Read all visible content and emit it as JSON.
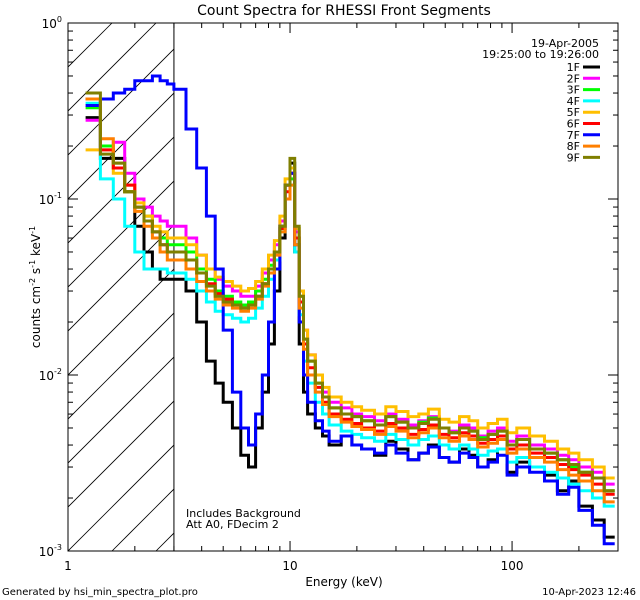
{
  "chart_data": {
    "type": "line",
    "title": "Count Spectra for RHESSI Front Segments",
    "xlabel": "Energy (keV)",
    "ylabel_parts": {
      "prefix": "counts cm",
      "exp1": "-2",
      "mid1": " s",
      "exp2": "-1",
      "mid2": " keV",
      "exp3": "-1"
    },
    "xscale": "log",
    "yscale": "log",
    "xlim": [
      1,
      300
    ],
    "ylim": [
      0.001,
      1
    ],
    "x_ticks": [
      {
        "value": 1,
        "label": "1"
      },
      {
        "value": 10,
        "label": "10"
      },
      {
        "value": 100,
        "label": "100"
      }
    ],
    "y_ticks": [
      {
        "value": 0.001,
        "base": "10",
        "exp": "-3"
      },
      {
        "value": 0.01,
        "base": "10",
        "exp": "-2"
      },
      {
        "value": 0.1,
        "base": "10",
        "exp": "-1"
      },
      {
        "value": 1,
        "base": "10",
        "exp": "0"
      }
    ],
    "date": "19-Apr-2005",
    "time_range": "19:25:00 to 19:26:00",
    "shaded_region": {
      "x_from": 1,
      "x_to": 3,
      "style": "hatched"
    },
    "annotations": [
      "Includes Background",
      "Att A0, FDecim 2"
    ],
    "legend_position": "top-right",
    "energy_edges": [
      1.2,
      1.4,
      1.6,
      1.8,
      2.0,
      2.2,
      2.4,
      2.6,
      2.8,
      3.0,
      3.4,
      3.8,
      4.2,
      4.6,
      5.0,
      5.5,
      6.0,
      6.5,
      7.0,
      7.5,
      8.0,
      8.5,
      9.0,
      9.5,
      10.0,
      10.5,
      11.0,
      11.5,
      12.0,
      13.0,
      14.0,
      15.0,
      17.0,
      19.0,
      21.0,
      24.0,
      27.0,
      30.0,
      34.0,
      38.0,
      42.0,
      47.0,
      52.0,
      58.0,
      64.0,
      70.0,
      78.0,
      86.0,
      95.0,
      105.0,
      120.0,
      140.0,
      160.0,
      180.0,
      200.0,
      230.0,
      260.0,
      290.0
    ],
    "series": [
      {
        "name": "1F",
        "color": "#000000",
        "values": [
          0.29,
          0.17,
          0.17,
          0.11,
          0.07,
          0.05,
          0.04,
          0.035,
          0.035,
          0.035,
          0.03,
          0.02,
          0.012,
          0.009,
          0.007,
          0.005,
          0.0035,
          0.003,
          0.005,
          0.008,
          0.015,
          0.03,
          0.06,
          0.12,
          0.16,
          0.05,
          0.015,
          0.008,
          0.006,
          0.005,
          0.0045,
          0.004,
          0.0045,
          0.004,
          0.0038,
          0.0035,
          0.0042,
          0.0038,
          0.0033,
          0.0036,
          0.004,
          0.0034,
          0.0032,
          0.0038,
          0.0035,
          0.003,
          0.0033,
          0.0038,
          0.0028,
          0.0032,
          0.003,
          0.0027,
          0.0022,
          0.0025,
          0.0018,
          0.0015,
          0.0012
        ]
      },
      {
        "name": "2F",
        "color": "#ff00ff",
        "values": [
          0.28,
          0.2,
          0.21,
          0.14,
          0.1,
          0.09,
          0.08,
          0.075,
          0.07,
          0.07,
          0.06,
          0.048,
          0.04,
          0.035,
          0.032,
          0.03,
          0.028,
          0.028,
          0.032,
          0.038,
          0.045,
          0.055,
          0.075,
          0.12,
          0.14,
          0.065,
          0.03,
          0.018,
          0.013,
          0.01,
          0.008,
          0.007,
          0.0065,
          0.006,
          0.0058,
          0.0055,
          0.006,
          0.0056,
          0.0052,
          0.0055,
          0.0058,
          0.005,
          0.0048,
          0.0052,
          0.005,
          0.0045,
          0.0048,
          0.005,
          0.0042,
          0.0045,
          0.004,
          0.0038,
          0.0035,
          0.0033,
          0.003,
          0.0028,
          0.0024
        ]
      },
      {
        "name": "3F",
        "color": "#00ff00",
        "values": [
          0.33,
          0.2,
          0.15,
          0.11,
          0.09,
          0.08,
          0.065,
          0.06,
          0.055,
          0.055,
          0.05,
          0.04,
          0.035,
          0.03,
          0.028,
          0.026,
          0.025,
          0.026,
          0.03,
          0.035,
          0.042,
          0.05,
          0.07,
          0.1,
          0.13,
          0.06,
          0.028,
          0.016,
          0.012,
          0.009,
          0.0075,
          0.0065,
          0.006,
          0.0058,
          0.0055,
          0.0052,
          0.0058,
          0.0054,
          0.005,
          0.0054,
          0.0057,
          0.005,
          0.0047,
          0.005,
          0.0048,
          0.0044,
          0.0046,
          0.0048,
          0.004,
          0.0043,
          0.0038,
          0.0036,
          0.0033,
          0.003,
          0.0028,
          0.0026,
          0.0022
        ]
      },
      {
        "name": "4F",
        "color": "#00ffff",
        "values": [
          0.35,
          0.13,
          0.1,
          0.07,
          0.05,
          0.04,
          0.04,
          0.04,
          0.038,
          0.038,
          0.035,
          0.03,
          0.026,
          0.023,
          0.022,
          0.021,
          0.02,
          0.021,
          0.024,
          0.028,
          0.035,
          0.045,
          0.065,
          0.1,
          0.12,
          0.05,
          0.022,
          0.012,
          0.009,
          0.007,
          0.006,
          0.0052,
          0.0048,
          0.0046,
          0.0044,
          0.0042,
          0.0046,
          0.0043,
          0.004,
          0.0043,
          0.0045,
          0.004,
          0.0038,
          0.004,
          0.0038,
          0.0035,
          0.0037,
          0.0038,
          0.0032,
          0.0034,
          0.003,
          0.0028,
          0.0026,
          0.0024,
          0.0022,
          0.002,
          0.0018
        ]
      },
      {
        "name": "5F",
        "color": "#ffbf00",
        "values": [
          0.19,
          0.19,
          0.14,
          0.12,
          0.095,
          0.08,
          0.07,
          0.065,
          0.06,
          0.06,
          0.055,
          0.048,
          0.04,
          0.036,
          0.034,
          0.032,
          0.03,
          0.031,
          0.034,
          0.04,
          0.048,
          0.058,
          0.08,
          0.13,
          0.15,
          0.068,
          0.03,
          0.018,
          0.013,
          0.01,
          0.0085,
          0.0075,
          0.007,
          0.0066,
          0.0063,
          0.006,
          0.0066,
          0.0062,
          0.0058,
          0.006,
          0.0064,
          0.0056,
          0.0054,
          0.0058,
          0.0055,
          0.005,
          0.0053,
          0.0056,
          0.0047,
          0.005,
          0.0045,
          0.0042,
          0.0038,
          0.0036,
          0.0033,
          0.003,
          0.0026
        ]
      },
      {
        "name": "6F",
        "color": "#ff0000",
        "values": [
          0.37,
          0.19,
          0.15,
          0.12,
          0.09,
          0.075,
          0.065,
          0.055,
          0.05,
          0.05,
          0.045,
          0.038,
          0.033,
          0.029,
          0.027,
          0.025,
          0.024,
          0.025,
          0.028,
          0.033,
          0.04,
          0.05,
          0.068,
          0.11,
          0.14,
          0.06,
          0.026,
          0.015,
          0.011,
          0.0085,
          0.007,
          0.006,
          0.0056,
          0.0053,
          0.005,
          0.0048,
          0.0053,
          0.005,
          0.0046,
          0.0049,
          0.0052,
          0.0046,
          0.0044,
          0.0047,
          0.0045,
          0.0041,
          0.0043,
          0.0045,
          0.0038,
          0.004,
          0.0036,
          0.0034,
          0.0031,
          0.0029,
          0.0027,
          0.0024,
          0.0021
        ]
      },
      {
        "name": "7F",
        "color": "#0000ff",
        "values": [
          0.34,
          0.37,
          0.4,
          0.42,
          0.47,
          0.47,
          0.5,
          0.47,
          0.45,
          0.42,
          0.25,
          0.15,
          0.08,
          0.04,
          0.018,
          0.008,
          0.005,
          0.004,
          0.006,
          0.01,
          0.02,
          0.04,
          0.07,
          0.12,
          0.14,
          0.055,
          0.02,
          0.01,
          0.007,
          0.0055,
          0.0048,
          0.0042,
          0.0045,
          0.004,
          0.0038,
          0.0036,
          0.004,
          0.0036,
          0.0033,
          0.0036,
          0.0039,
          0.0034,
          0.0032,
          0.0036,
          0.0034,
          0.003,
          0.0032,
          0.0035,
          0.0027,
          0.003,
          0.0028,
          0.0025,
          0.0021,
          0.0023,
          0.0017,
          0.0014,
          0.0011
        ]
      },
      {
        "name": "8F",
        "color": "#ff7f00",
        "values": [
          0.37,
          0.22,
          0.16,
          0.11,
          0.085,
          0.07,
          0.06,
          0.05,
          0.045,
          0.045,
          0.04,
          0.034,
          0.03,
          0.027,
          0.025,
          0.024,
          0.023,
          0.024,
          0.027,
          0.032,
          0.038,
          0.048,
          0.065,
          0.1,
          0.12,
          0.055,
          0.024,
          0.014,
          0.01,
          0.008,
          0.0068,
          0.0058,
          0.0054,
          0.0051,
          0.0049,
          0.0046,
          0.0051,
          0.0048,
          0.0044,
          0.0047,
          0.005,
          0.0044,
          0.0042,
          0.0045,
          0.0043,
          0.0039,
          0.0041,
          0.0043,
          0.0036,
          0.0038,
          0.0034,
          0.0032,
          0.0029,
          0.0027,
          0.0025,
          0.0022,
          0.0019
        ]
      },
      {
        "name": "9F",
        "color": "#7f7f00",
        "values": [
          0.4,
          0.18,
          0.16,
          0.11,
          0.09,
          0.075,
          0.065,
          0.055,
          0.05,
          0.05,
          0.045,
          0.038,
          0.032,
          0.028,
          0.026,
          0.025,
          0.024,
          0.025,
          0.028,
          0.033,
          0.04,
          0.05,
          0.07,
          0.12,
          0.17,
          0.07,
          0.028,
          0.016,
          0.012,
          0.009,
          0.0075,
          0.0065,
          0.006,
          0.0058,
          0.0055,
          0.0052,
          0.0058,
          0.0054,
          0.005,
          0.0053,
          0.0056,
          0.005,
          0.0047,
          0.005,
          0.0048,
          0.0043,
          0.0046,
          0.0048,
          0.004,
          0.0043,
          0.0038,
          0.0036,
          0.0033,
          0.0031,
          0.0028,
          0.0026,
          0.0022
        ]
      }
    ]
  },
  "footer": {
    "generated_by": "Generated by hsi_min_spectra_plot.pro",
    "timestamp": "10-Apr-2023 12:46"
  }
}
